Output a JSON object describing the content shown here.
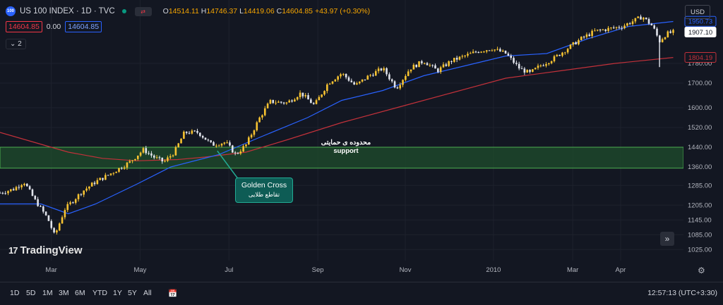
{
  "header": {
    "symbol_badge": "100",
    "title": "US 100 INDEX · 1D · TVC",
    "ohlc": {
      "o_label": "O",
      "o": "14514.11",
      "h_label": "H",
      "h": "14746.37",
      "l_label": "L",
      "l": "14419.06",
      "c_label": "C",
      "c": "14604.85",
      "change": "+43.97 (+0.30%)"
    },
    "bid": "14604.85",
    "spread": "0.00",
    "ask": "14604.85",
    "indicators_count": "2",
    "currency": "USD"
  },
  "annotations": {
    "support_fa": "محدوده ی حمایتی",
    "support_en": "support",
    "golden_cross_en": "Golden Cross",
    "golden_cross_fa": "تقاطع طلایی"
  },
  "logo": "TradingView",
  "timeframes": [
    "1D",
    "5D",
    "1M",
    "3M",
    "6M",
    "YTD",
    "1Y",
    "5Y",
    "All"
  ],
  "clock": "12:57:13 (UTC+3:30)",
  "colors": {
    "bg": "#131722",
    "candle_up": "#f7c331",
    "candle_down": "#e0e3eb",
    "ma_fast": "#2962ff",
    "ma_slow": "#c2313a",
    "support_zone": "#1f4d2c",
    "accent": "#22ab94"
  },
  "chart_data": {
    "type": "candlestick",
    "y_scale": "linear",
    "ylim": [
      980,
      1980
    ],
    "y_ticks": [
      1025,
      1085,
      1145,
      1205,
      1285,
      1360,
      1440,
      1520,
      1600,
      1700,
      1780
    ],
    "y_tick_labels": [
      "1025.00",
      "1085.00",
      "1145.00",
      "1205.00",
      "1285.00",
      "1360.00",
      "1440.00",
      "1520.00",
      "1600.00",
      "1700.00",
      "1780.00"
    ],
    "x_labels": [
      "Mar",
      "May",
      "Jul",
      "Sep",
      "Nov",
      "2010",
      "Mar",
      "Apr"
    ],
    "price_marks": [
      {
        "value": 1950.73,
        "label": "1950.73",
        "color": "#2962ff"
      },
      {
        "value": 1907.1,
        "label": "1907.10",
        "color": "#ffffff"
      },
      {
        "value": 1804.19,
        "label": "1804.19",
        "color": "#c2313a"
      }
    ],
    "support_zone": [
      1355,
      1440
    ],
    "close_path": [
      [
        0,
        1255
      ],
      [
        0.02,
        1270
      ],
      [
        0.035,
        1300
      ],
      [
        0.05,
        1230
      ],
      [
        0.07,
        1150
      ],
      [
        0.08,
        1080
      ],
      [
        0.095,
        1190
      ],
      [
        0.12,
        1260
      ],
      [
        0.14,
        1300
      ],
      [
        0.16,
        1330
      ],
      [
        0.19,
        1380
      ],
      [
        0.21,
        1430
      ],
      [
        0.225,
        1400
      ],
      [
        0.24,
        1380
      ],
      [
        0.255,
        1420
      ],
      [
        0.27,
        1500
      ],
      [
        0.29,
        1500
      ],
      [
        0.31,
        1450
      ],
      [
        0.33,
        1460
      ],
      [
        0.345,
        1410
      ],
      [
        0.36,
        1450
      ],
      [
        0.38,
        1560
      ],
      [
        0.395,
        1625
      ],
      [
        0.42,
        1620
      ],
      [
        0.44,
        1660
      ],
      [
        0.46,
        1610
      ],
      [
        0.48,
        1700
      ],
      [
        0.5,
        1740
      ],
      [
        0.52,
        1690
      ],
      [
        0.54,
        1730
      ],
      [
        0.56,
        1760
      ],
      [
        0.58,
        1680
      ],
      [
        0.6,
        1760
      ],
      [
        0.62,
        1790
      ],
      [
        0.64,
        1750
      ],
      [
        0.66,
        1790
      ],
      [
        0.68,
        1810
      ],
      [
        0.7,
        1830
      ],
      [
        0.72,
        1840
      ],
      [
        0.74,
        1820
      ],
      [
        0.76,
        1760
      ],
      [
        0.775,
        1740
      ],
      [
        0.79,
        1770
      ],
      [
        0.81,
        1800
      ],
      [
        0.83,
        1840
      ],
      [
        0.85,
        1880
      ],
      [
        0.87,
        1910
      ],
      [
        0.89,
        1920
      ],
      [
        0.91,
        1930
      ],
      [
        0.925,
        1950
      ],
      [
        0.94,
        1970
      ],
      [
        0.955,
        1930
      ],
      [
        0.965,
        1870
      ],
      [
        0.975,
        1900
      ],
      [
        0.985,
        1907
      ]
    ],
    "sma_fast_path": [
      [
        0,
        1210
      ],
      [
        0.06,
        1210
      ],
      [
        0.1,
        1170
      ],
      [
        0.14,
        1210
      ],
      [
        0.2,
        1290
      ],
      [
        0.25,
        1360
      ],
      [
        0.32,
        1410
      ],
      [
        0.38,
        1480
      ],
      [
        0.45,
        1560
      ],
      [
        0.5,
        1630
      ],
      [
        0.56,
        1670
      ],
      [
        0.62,
        1730
      ],
      [
        0.68,
        1770
      ],
      [
        0.74,
        1810
      ],
      [
        0.8,
        1820
      ],
      [
        0.86,
        1880
      ],
      [
        0.92,
        1930
      ],
      [
        0.985,
        1950
      ]
    ],
    "sma_slow_path": [
      [
        0,
        1500
      ],
      [
        0.05,
        1460
      ],
      [
        0.1,
        1420
      ],
      [
        0.15,
        1395
      ],
      [
        0.2,
        1385
      ],
      [
        0.26,
        1390
      ],
      [
        0.3,
        1400
      ],
      [
        0.36,
        1420
      ],
      [
        0.42,
        1470
      ],
      [
        0.5,
        1540
      ],
      [
        0.58,
        1600
      ],
      [
        0.66,
        1660
      ],
      [
        0.74,
        1720
      ],
      [
        0.82,
        1750
      ],
      [
        0.9,
        1780
      ],
      [
        0.985,
        1804
      ]
    ]
  }
}
